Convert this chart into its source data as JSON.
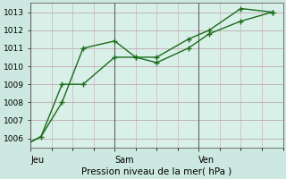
{
  "background_color": "#cce8e0",
  "plot_bg_color": "#d8f0e8",
  "grid_color": "#c0a8b0",
  "line_color": "#1a6b1a",
  "xlabel": "Pression niveau de la mer( hPa )",
  "ylim": [
    1005.5,
    1013.5
  ],
  "yticks": [
    1006,
    1007,
    1008,
    1009,
    1010,
    1011,
    1012,
    1013
  ],
  "xlim": [
    0,
    24
  ],
  "vline_positions": [
    0,
    8,
    16
  ],
  "vline_labels": [
    "Jeu",
    "Sam",
    "Ven"
  ],
  "line1_x": [
    0,
    1,
    3,
    5,
    8,
    10,
    12,
    15,
    17,
    20,
    23
  ],
  "line1_y": [
    1005.8,
    1006.1,
    1008.0,
    1011.0,
    1011.4,
    1010.5,
    1010.5,
    1011.5,
    1012.0,
    1013.2,
    1013.0
  ],
  "line2_x": [
    0,
    1,
    3,
    5,
    8,
    10,
    12,
    15,
    17,
    20,
    23
  ],
  "line2_y": [
    1005.8,
    1006.1,
    1009.0,
    1009.0,
    1010.5,
    1010.5,
    1010.2,
    1011.0,
    1011.8,
    1012.5,
    1013.0
  ],
  "marker1_x": [
    1,
    3,
    5,
    8,
    10,
    12,
    15,
    17,
    20,
    23
  ],
  "marker1_y": [
    1006.1,
    1008.0,
    1011.0,
    1011.4,
    1010.5,
    1010.5,
    1011.5,
    1012.0,
    1013.2,
    1013.0
  ],
  "marker2_x": [
    3,
    5,
    8,
    10,
    12,
    15,
    17,
    20,
    23
  ],
  "marker2_y": [
    1009.0,
    1009.0,
    1010.5,
    1010.5,
    1010.2,
    1011.0,
    1011.8,
    1012.5,
    1013.0
  ],
  "vline_color": "#606060",
  "spine_color": "#606060"
}
